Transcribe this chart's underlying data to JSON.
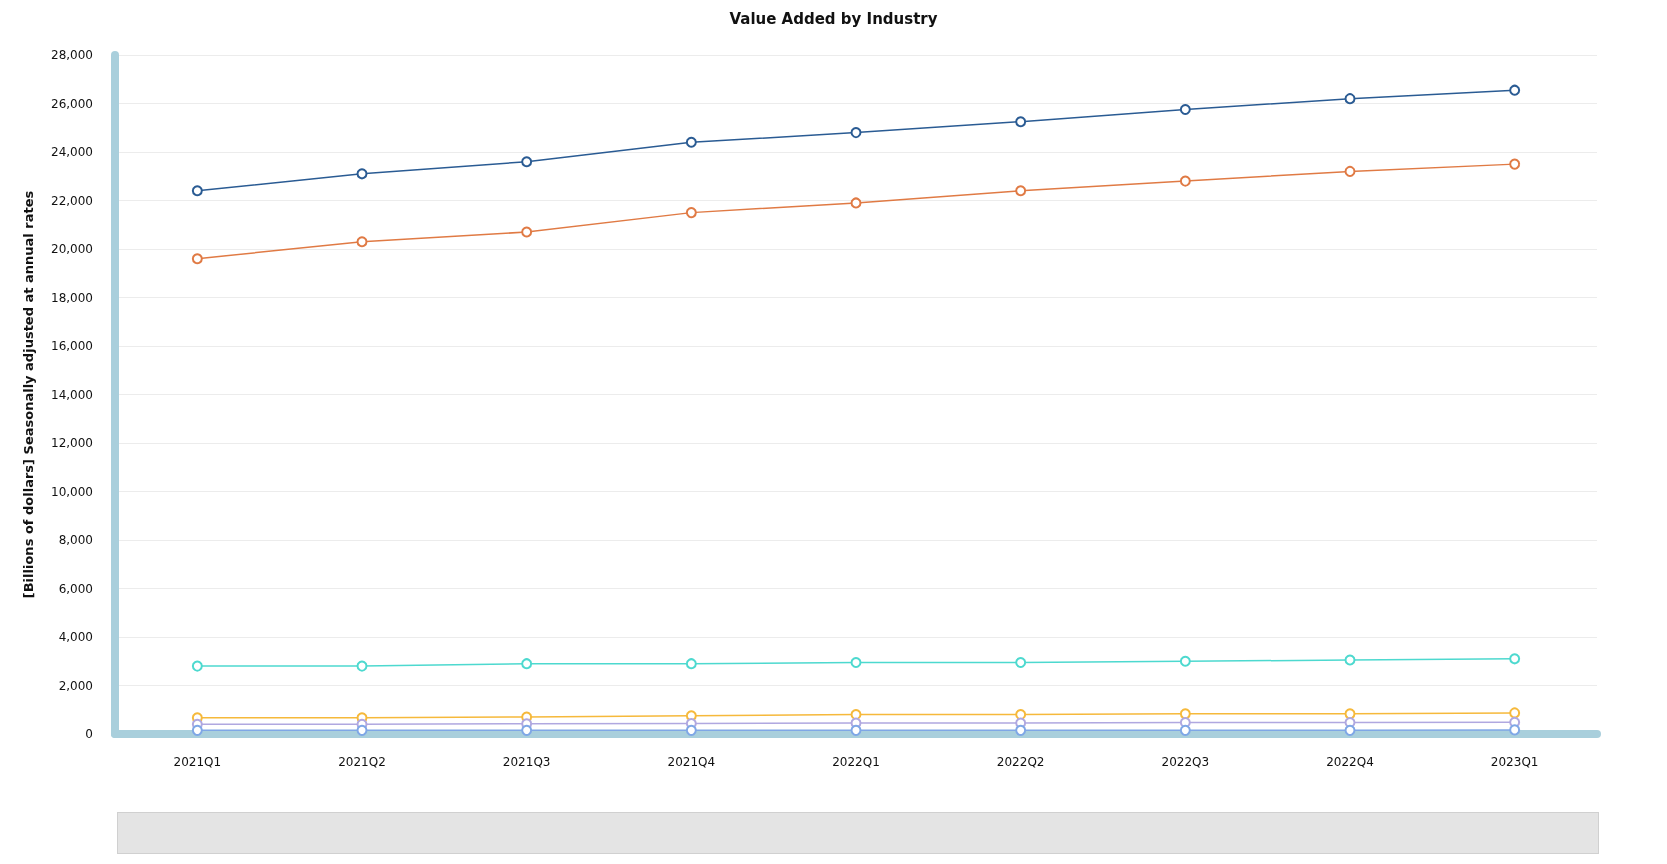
{
  "chart_data": {
    "type": "line",
    "title": "Value Added by Industry",
    "ylabel": "[Billions of dollars] Seasonally adjusted at annual rates",
    "categories": [
      "2021Q1",
      "2021Q2",
      "2021Q3",
      "2021Q4",
      "2022Q1",
      "2022Q2",
      "2022Q3",
      "2022Q4",
      "2023Q1"
    ],
    "series": [
      {
        "color": "#2a5b93",
        "values": [
          22400,
          23100,
          23600,
          24400,
          24800,
          25250,
          25750,
          26200,
          26550
        ]
      },
      {
        "color": "#e07a44",
        "values": [
          19600,
          20300,
          20700,
          21500,
          21900,
          22400,
          22800,
          23200,
          23500
        ]
      },
      {
        "color": "#4dd9cf",
        "values": [
          2800,
          2800,
          2900,
          2900,
          2950,
          2950,
          3000,
          3050,
          3100
        ]
      },
      {
        "color": "#f6b93b",
        "values": [
          670,
          670,
          700,
          750,
          800,
          800,
          830,
          830,
          870
        ]
      },
      {
        "color": "#b0a8e0",
        "values": [
          400,
          400,
          420,
          430,
          450,
          450,
          470,
          470,
          480
        ]
      },
      {
        "color": "#7fa7e6",
        "values": [
          150,
          150,
          150,
          150,
          150,
          150,
          150,
          150,
          170
        ]
      }
    ],
    "ylim": [
      0,
      28000
    ],
    "yticks": [
      0,
      {
        "value": 2000,
        "label": "2,000"
      },
      {
        "value": 4000,
        "label": "4,000"
      },
      {
        "value": 6000,
        "label": "6,000"
      },
      {
        "value": 8000,
        "label": "8,000"
      },
      {
        "value": 10000,
        "label": "10,000"
      },
      {
        "value": 12000,
        "label": "12,000"
      },
      {
        "value": 14000,
        "label": "14,000"
      },
      {
        "value": 16000,
        "label": "16,000"
      },
      {
        "value": 18000,
        "label": "18,000"
      },
      {
        "value": 20000,
        "label": "20,000"
      },
      {
        "value": 22000,
        "label": "22,000"
      },
      {
        "value": 24000,
        "label": "24,000"
      },
      {
        "value": 26000,
        "label": "26,000"
      },
      {
        "value": 28000,
        "label": "28,000"
      }
    ],
    "grid": "y",
    "marker": "circle",
    "line_style": "solid"
  }
}
